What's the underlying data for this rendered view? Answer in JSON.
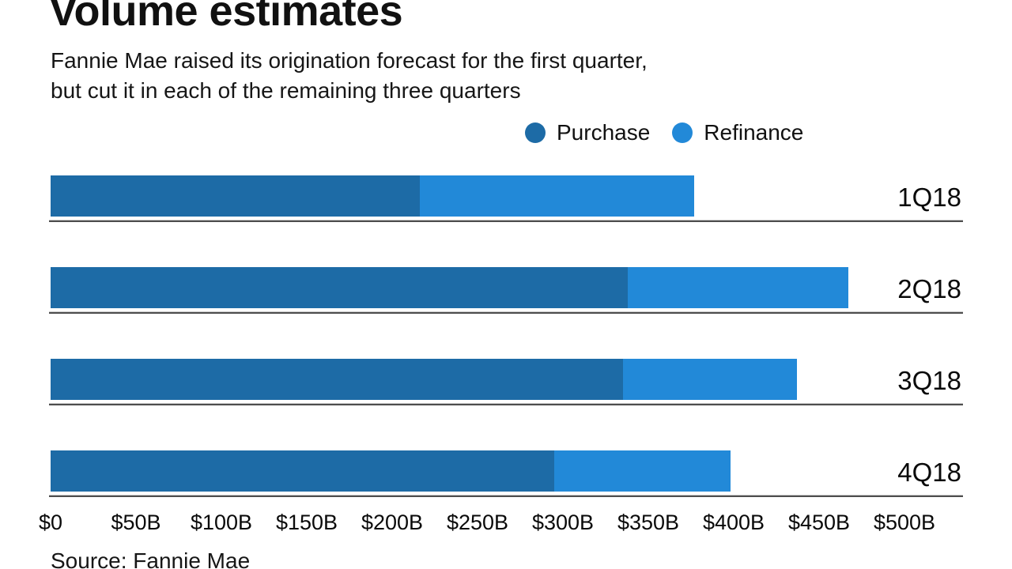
{
  "header": {
    "title": "Volume estimates",
    "subtitle_line1": "Fannie Mae raised its origination forecast for the first quarter,",
    "subtitle_line2": "but cut it in each of the remaining three quarters"
  },
  "legend": {
    "items": [
      {
        "label": "Purchase",
        "color": "#1d6ba6"
      },
      {
        "label": "Refinance",
        "color": "#2289d8"
      }
    ]
  },
  "chart_data": {
    "type": "bar",
    "orientation": "horizontal",
    "stacked": true,
    "title": "Volume estimates",
    "categories": [
      "1Q18",
      "2Q18",
      "3Q18",
      "4Q18"
    ],
    "series": [
      {
        "name": "Purchase",
        "color": "#1d6ba6",
        "values": [
          216,
          338,
          335,
          295
        ]
      },
      {
        "name": "Refinance",
        "color": "#2289d8",
        "values": [
          161,
          129,
          102,
          103
        ]
      }
    ],
    "totals": [
      377,
      467,
      437,
      398
    ],
    "units": "billions of dollars",
    "xlim": [
      0,
      500
    ],
    "x_tick_labels": [
      "$0",
      "$50B",
      "$100B",
      "$150B",
      "$200B",
      "$250B",
      "$300B",
      "$350B",
      "$400B",
      "$450B",
      "$500B"
    ],
    "legend_position": "top-right",
    "grid": false
  },
  "footer": {
    "source": "Source: Fannie Mae"
  }
}
